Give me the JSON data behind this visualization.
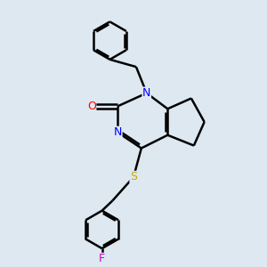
{
  "bg_color": "#dde8f0",
  "atom_colors": {
    "N": "#0000ff",
    "O": "#ff0000",
    "S": "#ccaa00",
    "F": "#cc00cc"
  },
  "bond_color": "#000000",
  "bond_width": 1.8,
  "font_size": 9
}
